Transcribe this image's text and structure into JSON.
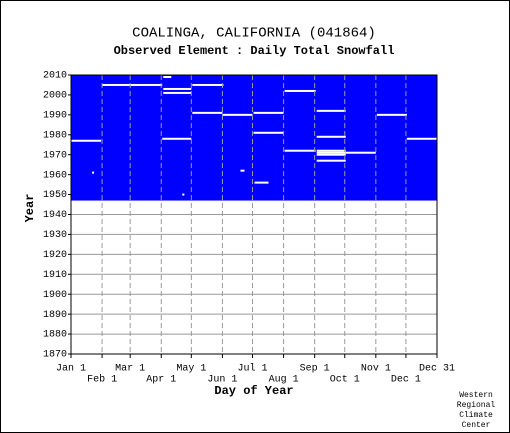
{
  "chart_data": {
    "type": "coverage",
    "title": "COALINGA, CALIFORNIA   (041864)",
    "subtitle": "Observed Element : Daily Total Snowfall",
    "x_label": "Day of Year",
    "y_label": "Year",
    "credit": [
      "Western",
      "Regional",
      "Climate",
      "Center"
    ],
    "color": "#0000ff",
    "period": [
      1947,
      2010
    ],
    "xlim": [
      1,
      366
    ],
    "ylim": [
      1870,
      2010
    ],
    "xticks": [
      {
        "value": 1,
        "label": "Jan 1"
      },
      {
        "value": 32,
        "label": "Feb 1"
      },
      {
        "value": 60,
        "label": "Mar 1"
      },
      {
        "value": 91,
        "label": "Apr 1"
      },
      {
        "value": 121,
        "label": "May 1"
      },
      {
        "value": 152,
        "label": "Jun 1"
      },
      {
        "value": 182,
        "label": "Jul 1"
      },
      {
        "value": 213,
        "label": "Aug 1"
      },
      {
        "value": 244,
        "label": "Sep 1"
      },
      {
        "value": 274,
        "label": "Oct 1"
      },
      {
        "value": 305,
        "label": "Nov 1"
      },
      {
        "value": 335,
        "label": "Dec 1"
      },
      {
        "value": 366,
        "label": "Dec 31"
      }
    ],
    "yticks": [
      1870,
      1880,
      1890,
      1900,
      1910,
      1920,
      1930,
      1940,
      1950,
      1960,
      1970,
      1980,
      1990,
      2000,
      2010
    ],
    "grid": true,
    "gaps": [
      {
        "year": 1977,
        "start": 1,
        "end": 31
      },
      {
        "year": 2005,
        "start": 32,
        "end": 92
      },
      {
        "year": 2009,
        "start": 93,
        "end": 101
      },
      {
        "year": 2003,
        "start": 93,
        "end": 121
      },
      {
        "year": 2001,
        "start": 93,
        "end": 121
      },
      {
        "year": 1978,
        "start": 92,
        "end": 121
      },
      {
        "year": 2005,
        "start": 122,
        "end": 153
      },
      {
        "year": 1991,
        "start": 122,
        "end": 152
      },
      {
        "year": 1990,
        "start": 152,
        "end": 182
      },
      {
        "year": 1991,
        "start": 183,
        "end": 213
      },
      {
        "year": 1981,
        "start": 183,
        "end": 213
      },
      {
        "year": 2002,
        "start": 214,
        "end": 245
      },
      {
        "year": 1972,
        "start": 214,
        "end": 245
      },
      {
        "year": 1992,
        "start": 246,
        "end": 275
      },
      {
        "year": 1979,
        "start": 246,
        "end": 275
      },
      {
        "year": 1972,
        "start": 246,
        "end": 275
      },
      {
        "year": 1971,
        "start": 246,
        "end": 275
      },
      {
        "year": 1970,
        "start": 246,
        "end": 275
      },
      {
        "year": 1967,
        "start": 246,
        "end": 275
      },
      {
        "year": 1971,
        "start": 275,
        "end": 305
      },
      {
        "year": 1990,
        "start": 306,
        "end": 336
      },
      {
        "year": 1978,
        "start": 336,
        "end": 366
      },
      {
        "year": 1956,
        "start": 184,
        "end": 198
      },
      {
        "year": 1962,
        "start": 170,
        "end": 174
      },
      {
        "year": 1961,
        "start": 22,
        "end": 24
      },
      {
        "year": 1950,
        "start": 112,
        "end": 114
      }
    ]
  }
}
